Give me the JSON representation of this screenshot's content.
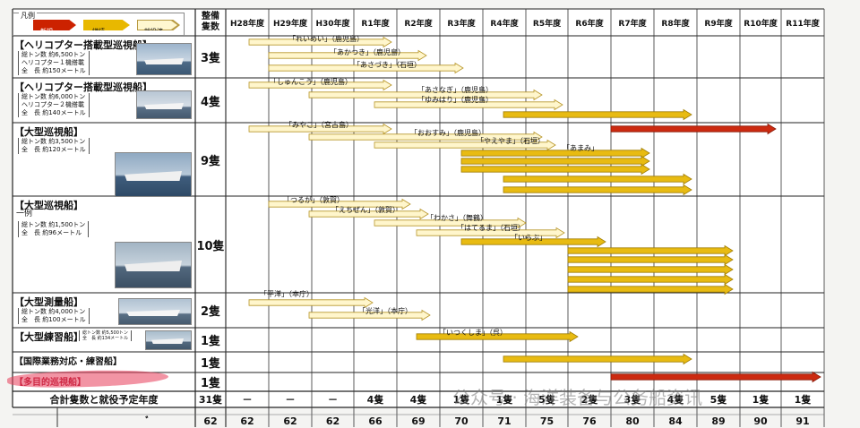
{
  "legend": {
    "title": "凡例",
    "items": [
      {
        "label": "新規",
        "color": "#cc2200"
      },
      {
        "label": "継続",
        "color": "#e8b800"
      },
      {
        "label": "就役済",
        "color": "#fff7d0"
      }
    ]
  },
  "header": {
    "count_label": "整備\n隻数",
    "years": [
      "H28年度",
      "H29年度",
      "H30年度",
      "R1年度",
      "R2年度",
      "R3年度",
      "R4年度",
      "R5年度",
      "R6年度",
      "R7年度",
      "R8年度",
      "R9年度",
      "R10年度",
      "R11年度"
    ]
  },
  "groups": [
    {
      "name": "【ヘリコプター搭載型巡視船】",
      "specs": [
        "総トン数 約6,500トン",
        "ヘリコプター１機搭載",
        "全　長 約150メートル"
      ],
      "count": "3隻"
    },
    {
      "name": "【ヘリコプター搭載型巡視船】",
      "specs": [
        "総トン数 約6,000トン",
        "ヘリコプター２機搭載",
        "全　長 約140メートル"
      ],
      "count": "4隻"
    },
    {
      "name": "【大型巡視船】",
      "specs": [
        "総トン数 約3,500トン",
        "全　長 約120メートル"
      ],
      "count": "9隻"
    },
    {
      "name": "【大型巡視船】",
      "sub": "一例",
      "specs": [
        "総トン数 約1,500トン",
        "全　長 約96メートル"
      ],
      "count": "10隻"
    },
    {
      "name": "【大型測量船】",
      "specs": [
        "総トン数 約4,000トン",
        "全　長 約100メートル"
      ],
      "count": "2隻"
    },
    {
      "name": "【大型練習船】",
      "specs": [
        "総トン数 約5,500トン",
        "全　長 約134メートル"
      ],
      "count": "1隻"
    },
    {
      "name": "【国際業務対応・練習船】",
      "specs": [],
      "count": "1隻"
    },
    {
      "name": "【多目的巡視船】",
      "specs": [],
      "count": "1隻"
    }
  ],
  "bar_labels": [
    "「れいめい」（鹿児島）",
    "「あかつき」（鹿児島）",
    "「あさづき」（石垣）",
    "「しゅんこう」（鹿児島）",
    "「あさなぎ」（鹿児島）",
    "「ゆみはり」（鹿児島）",
    "「みやこ」（宮古島）",
    "「おおすみ」（鹿児島）",
    "「やえやま」（石垣）",
    "「あまみ」",
    "「つるが」（敦賀）",
    "「えちぜん」（敦賀）",
    "「わかさ」（舞鶴）",
    "「はてるま」（石垣）",
    "「いらぶ」",
    "「平洋」（本庁）",
    "「光洋」（本庁）",
    "「いつくしま」（呉）"
  ],
  "totals": {
    "label": "合計隻数と就役予定年度",
    "count": "31隻",
    "values": [
      "－",
      "－",
      "－",
      "4隻",
      "4隻",
      "1隻",
      "1隻",
      "5隻",
      "2隻",
      "3隻",
      "4隻",
      "5隻",
      "1隻",
      "1隻"
    ]
  },
  "bottom_row": {
    "partial": "ﾞ",
    "values": [
      "62",
      "62",
      "62",
      "62",
      "66",
      "69",
      "70",
      "71",
      "75",
      "76",
      "80",
      "84",
      "89",
      "90",
      "91"
    ]
  },
  "watermark": "公众号 · 海洋装备与公务船资讯"
}
